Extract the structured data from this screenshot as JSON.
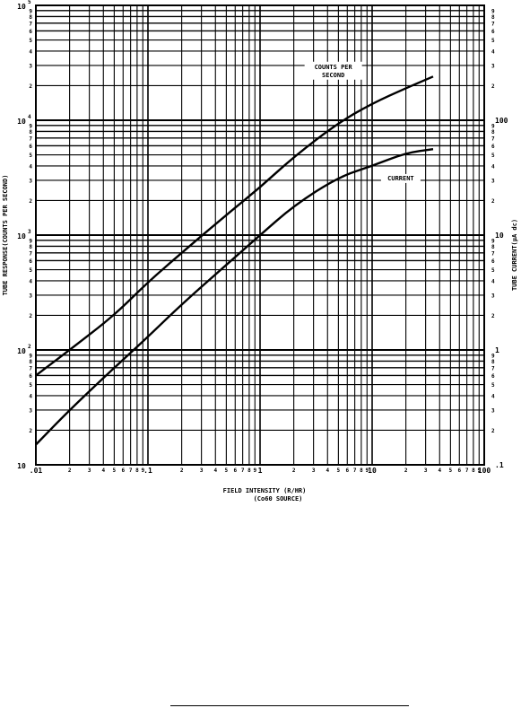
{
  "chart_data": {
    "type": "line",
    "title": "",
    "xlabel": "FIELD INTENSITY (R/HR)",
    "xlabel_sub": "(Co60 SOURCE)",
    "ylabel": "TUBE RESPONSE(COUNTS PER SECOND)",
    "ylabel_right": "TUBE CURRENT(µA dc)",
    "x_scale": "log",
    "y_scale": "log",
    "y_right_scale": "log",
    "xlim": [
      0.01,
      100
    ],
    "ylim": [
      10,
      100000
    ],
    "ylim_right": [
      0.1,
      1000
    ],
    "grid": true,
    "legend": "none",
    "x_major_ticks": [
      {
        "value": 0.01,
        "label": ".01"
      },
      {
        "value": 0.1,
        "label": ".1"
      },
      {
        "value": 1,
        "label": "1"
      },
      {
        "value": 10,
        "label": "10"
      },
      {
        "value": 100,
        "label": "100"
      }
    ],
    "x_minor_labels": [
      "2",
      "3",
      "4",
      "5",
      "6",
      "7",
      "8",
      "9"
    ],
    "y_left_major_ticks": [
      {
        "value": 10,
        "base": "10",
        "exp": ""
      },
      {
        "value": 100,
        "base": "10",
        "exp": "2"
      },
      {
        "value": 1000,
        "base": "10",
        "exp": "3"
      },
      {
        "value": 10000,
        "base": "10",
        "exp": "4"
      },
      {
        "value": 100000,
        "base": "10",
        "exp": "5"
      }
    ],
    "y_minor_labels": [
      "2",
      "3",
      "4",
      "5",
      "6",
      "7",
      "8",
      "9"
    ],
    "y_right_major_ticks": [
      {
        "value": 0.1,
        "label": ".1"
      },
      {
        "value": 1,
        "label": "1"
      },
      {
        "value": 10,
        "label": "10"
      },
      {
        "value": 100,
        "label": "100"
      }
    ],
    "series": [
      {
        "name": "COUNTS PER SECOND",
        "axis": "left",
        "label_lines": [
          "COUNTS PER",
          "SECOND"
        ],
        "points": [
          [
            0.01,
            60
          ],
          [
            0.02,
            100
          ],
          [
            0.05,
            200
          ],
          [
            0.1,
            390
          ],
          [
            0.2,
            700
          ],
          [
            0.5,
            1500
          ],
          [
            1,
            2600
          ],
          [
            2,
            4800
          ],
          [
            5,
            9500
          ],
          [
            10,
            14000
          ],
          [
            20,
            19000
          ],
          [
            35,
            24000
          ]
        ]
      },
      {
        "name": "CURRENT",
        "axis": "right",
        "label_lines": [
          "CURRENT"
        ],
        "points": [
          [
            0.01,
            0.15
          ],
          [
            0.02,
            0.3
          ],
          [
            0.05,
            0.7
          ],
          [
            0.1,
            1.3
          ],
          [
            0.2,
            2.5
          ],
          [
            0.5,
            5.5
          ],
          [
            1,
            10
          ],
          [
            2,
            18
          ],
          [
            5,
            32
          ],
          [
            10,
            40
          ],
          [
            20,
            52
          ],
          [
            35,
            56
          ]
        ]
      }
    ]
  }
}
